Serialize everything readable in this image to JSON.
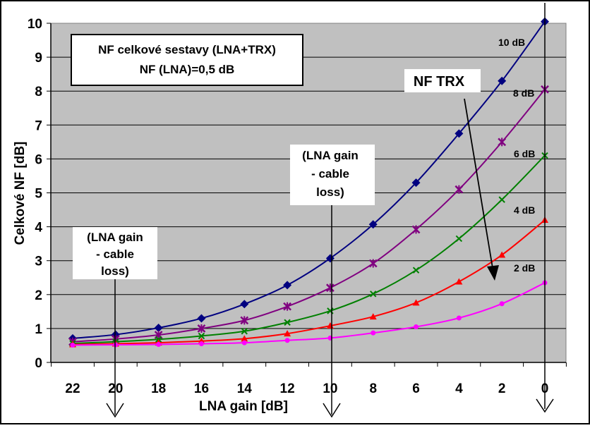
{
  "chart_data": {
    "type": "line",
    "title": "NF celkové sestavy (LNA+TRX)",
    "subtitle": "NF (LNA)=0,5 dB",
    "xlabel": "LNA gain [dB]",
    "ylabel": "Celkové NF [dB]",
    "x": [
      22,
      20,
      18,
      16,
      14,
      12,
      10,
      8,
      6,
      4,
      2,
      0
    ],
    "x_tick_labels": [
      "22",
      "20",
      "18",
      "16",
      "14",
      "12",
      "10",
      "8",
      "6",
      "4",
      "2",
      "0"
    ],
    "y_tick_labels": [
      "0",
      "1",
      "2",
      "3",
      "4",
      "5",
      "6",
      "7",
      "8",
      "9",
      "10"
    ],
    "xlim": [
      22,
      0
    ],
    "ylim": [
      0,
      10
    ],
    "x_reversed": true,
    "grid": "horizontal",
    "plot_background": "#c0c0c0",
    "series": [
      {
        "name": "10 dB",
        "color": "#000080",
        "marker": "diamond",
        "values": [
          0.71,
          0.82,
          1.02,
          1.3,
          1.72,
          2.28,
          3.07,
          4.07,
          5.3,
          6.75,
          8.3,
          10.05
        ]
      },
      {
        "name": "8 dB",
        "color": "#800080",
        "marker": "star",
        "values": [
          0.61,
          0.69,
          0.81,
          1.0,
          1.24,
          1.65,
          2.2,
          2.92,
          3.92,
          5.1,
          6.5,
          8.05
        ]
      },
      {
        "name": "6 dB",
        "color": "#008000",
        "marker": "x",
        "values": [
          0.56,
          0.61,
          0.68,
          0.78,
          0.92,
          1.18,
          1.52,
          2.02,
          2.72,
          3.65,
          4.8,
          6.1
        ]
      },
      {
        "name": "4 dB",
        "color": "#ff0000",
        "marker": "triangle",
        "values": [
          0.53,
          0.55,
          0.58,
          0.63,
          0.7,
          0.85,
          1.08,
          1.35,
          1.76,
          2.38,
          3.17,
          4.2
        ]
      },
      {
        "name": "2 dB",
        "color": "#ff00ff",
        "marker": "circle",
        "values": [
          0.51,
          0.52,
          0.53,
          0.55,
          0.58,
          0.65,
          0.72,
          0.87,
          1.05,
          1.31,
          1.73,
          2.35
        ]
      }
    ],
    "annotations": {
      "nf_trx_label": "NF TRX",
      "note_line1": "(LNA gain",
      "note_line2": "- cable",
      "note_line3": "loss)"
    }
  }
}
